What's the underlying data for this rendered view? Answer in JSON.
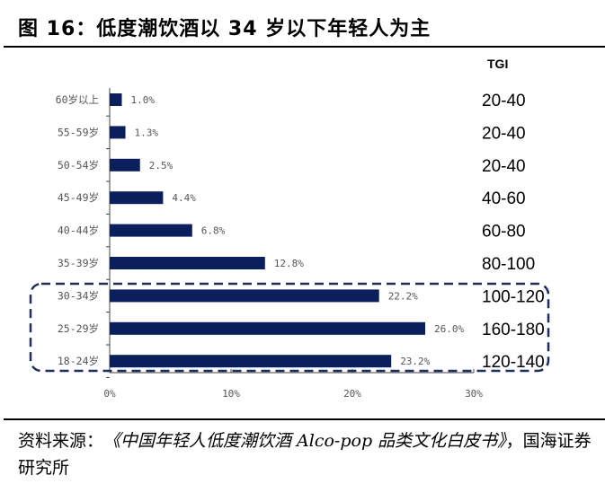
{
  "title": "图 16：低度潮饮酒以 34 岁以下年轻人为主",
  "source": {
    "prefix": "资料来源：",
    "book": "《中国年轻人低度潮饮酒 Alco-pop 品类文化白皮书》",
    "suffix": "，国海证券研究所"
  },
  "chart_data": {
    "type": "bar",
    "orientation": "horizontal",
    "categories": [
      "60岁以上",
      "55-59岁",
      "50-54岁",
      "45-49岁",
      "40-44岁",
      "35-39岁",
      "30-34岁",
      "25-29岁",
      "18-24岁"
    ],
    "values": [
      1.0,
      1.3,
      2.5,
      4.4,
      6.8,
      12.8,
      22.2,
      26.0,
      23.2
    ],
    "data_labels": [
      "1.0%",
      "1.3%",
      "2.5%",
      "4.4%",
      "6.8%",
      "12.8%",
      "22.2%",
      "26.0%",
      "23.2%"
    ],
    "xlim": [
      0,
      30
    ],
    "xticks": [
      "0%",
      "10%",
      "20%",
      "30%"
    ],
    "grid": false,
    "bar_color": "#0b1f5c",
    "tgi_header": "TGI",
    "tgi": [
      "20-40",
      "20-40",
      "20-40",
      "40-60",
      "60-80",
      "80-100",
      "100-120",
      "160-180",
      "120-140"
    ],
    "highlight": {
      "categories": [
        "30-34岁",
        "25-29岁",
        "18-24岁"
      ],
      "color": "#1c2f5e",
      "style": "dashed"
    }
  }
}
